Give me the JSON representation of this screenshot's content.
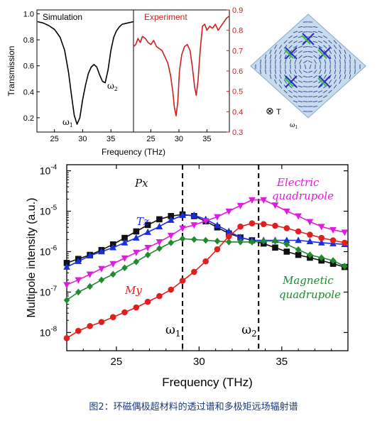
{
  "caption": "图2：环磁偶极超材料的透过谱和多极矩远场辐射谱",
  "inset": {
    "omega_label": "ω",
    "omega_sub": "1",
    "toroid_symbol": "⊗",
    "toroid_label": "T"
  },
  "chart_data": [
    {
      "type": "line",
      "panel_labels": [
        "Simulation",
        "Experiment"
      ],
      "xlabel": "Frequency (THz)",
      "ylabel_left": "Transmission",
      "xticks": [
        "25",
        "30",
        "35"
      ],
      "yticks_left": [
        "0.2",
        "0.4",
        "0.6",
        "0.8",
        "1.0"
      ],
      "yticks_right": [
        "0.3",
        "0.4",
        "0.5",
        "0.6",
        "0.7",
        "0.8",
        "0.9"
      ],
      "annotations": [
        {
          "base": "ω",
          "sub": "1"
        },
        {
          "base": "ω",
          "sub": "2"
        }
      ],
      "series": [
        {
          "color": "#000000",
          "x": [
            22,
            23,
            24,
            25,
            26,
            26.8,
            27.5,
            28,
            28.5,
            29,
            29.5,
            30,
            30.5,
            31,
            31.5,
            32,
            32.5,
            33,
            33.5,
            34,
            34.5,
            35,
            35.5,
            36,
            36.5,
            37,
            38,
            39
          ],
          "y": [
            0.94,
            0.93,
            0.91,
            0.88,
            0.82,
            0.72,
            0.55,
            0.38,
            0.22,
            0.15,
            0.2,
            0.34,
            0.45,
            0.54,
            0.59,
            0.61,
            0.59,
            0.53,
            0.48,
            0.47,
            0.57,
            0.72,
            0.82,
            0.87,
            0.9,
            0.92,
            0.93,
            0.94
          ]
        },
        {
          "color": "#cc1f1f",
          "x": [
            21.9,
            22.3,
            22.7,
            23.1,
            23.5,
            24,
            24.5,
            25,
            25.5,
            26,
            26.5,
            27,
            27.5,
            28,
            28.5,
            28.9,
            29.2,
            29.5,
            29.8,
            30.1,
            30.5,
            31,
            31.5,
            32,
            32.4,
            32.8,
            33.1,
            33.4,
            33.8,
            34.2,
            34.6,
            35,
            35.5,
            36,
            36.5,
            37,
            37.5,
            38,
            38.5,
            39
          ],
          "y": [
            0.72,
            0.73,
            0.76,
            0.74,
            0.77,
            0.76,
            0.74,
            0.73,
            0.75,
            0.72,
            0.71,
            0.7,
            0.67,
            0.64,
            0.58,
            0.5,
            0.42,
            0.38,
            0.45,
            0.6,
            0.68,
            0.72,
            0.73,
            0.7,
            0.62,
            0.52,
            0.48,
            0.55,
            0.7,
            0.82,
            0.83,
            0.8,
            0.82,
            0.81,
            0.83,
            0.8,
            0.82,
            0.84,
            0.86,
            0.87
          ]
        }
      ]
    },
    {
      "type": "line",
      "xlabel": "Frequency (THz)",
      "ylabel": "Multipole intensity (a.u.)",
      "xticks": [
        "25",
        "30",
        "35"
      ],
      "ytick_exponents": [
        "-8",
        "-7",
        "-6",
        "-5",
        "-4"
      ],
      "ytick_base": "10",
      "vlines": [
        {
          "x": 29,
          "label_base": "ω",
          "label_sub": "1"
        },
        {
          "x": 33.6,
          "label_base": "ω",
          "label_sub": "2"
        }
      ],
      "series": [
        {
          "name": "Px",
          "color": "#111111",
          "marker": "square",
          "x": [
            22,
            22.7,
            23.4,
            24.1,
            24.8,
            25.5,
            26.2,
            26.9,
            27.6,
            28.3,
            29,
            29.7,
            30.4,
            31.1,
            31.8,
            32.5,
            33.2,
            33.9,
            34.6,
            35.3,
            36,
            36.7,
            37.4,
            38.1,
            38.8
          ],
          "y": [
            -6.28,
            -6.18,
            -6.08,
            -5.96,
            -5.82,
            -5.66,
            -5.5,
            -5.34,
            -5.2,
            -5.12,
            -5.08,
            -5.12,
            -5.25,
            -5.4,
            -5.55,
            -5.65,
            -5.72,
            -5.8,
            -5.9,
            -6.0,
            -6.08,
            -6.15,
            -6.22,
            -6.3,
            -6.38
          ]
        },
        {
          "name": "Tz",
          "color": "#1a2ee0",
          "marker": "triangle-up",
          "x": [
            22,
            22.7,
            23.4,
            24.1,
            24.8,
            25.5,
            26.2,
            26.9,
            27.6,
            28.3,
            29,
            29.7,
            30.4,
            31.1,
            31.8,
            32.5,
            33.2,
            33.9,
            34.6,
            35.3,
            36,
            36.7,
            37.4,
            38.1,
            38.8
          ],
          "y": [
            -6.38,
            -6.24,
            -6.1,
            -6.0,
            -5.9,
            -5.78,
            -5.66,
            -5.52,
            -5.38,
            -5.22,
            -5.1,
            -5.1,
            -5.2,
            -5.35,
            -5.5,
            -5.65,
            -5.72,
            -5.72,
            -5.72,
            -5.72,
            -5.72,
            -5.75,
            -5.78,
            -5.8,
            -5.82
          ]
        },
        {
          "name": "Electric quadrupole",
          "color": "#e01be0",
          "marker": "triangle-down",
          "x": [
            22,
            22.7,
            23.4,
            24.1,
            24.8,
            25.5,
            26.2,
            26.9,
            27.6,
            28.3,
            29,
            29.7,
            30.4,
            31.1,
            31.8,
            32.5,
            33.2,
            33.9,
            34.6,
            35.3,
            36,
            36.7,
            37.4,
            38.1,
            38.8
          ],
          "y": [
            -6.82,
            -6.7,
            -6.56,
            -6.42,
            -6.3,
            -6.16,
            -6.02,
            -5.9,
            -5.76,
            -5.6,
            -5.42,
            -5.34,
            -5.24,
            -5.14,
            -5.0,
            -4.86,
            -4.72,
            -4.72,
            -4.85,
            -5.0,
            -5.12,
            -5.26,
            -5.38,
            -5.46,
            -5.52
          ]
        },
        {
          "name": "Magnetic quadrupole",
          "color": "#1f8a2e",
          "marker": "diamond",
          "x": [
            22,
            22.7,
            23.4,
            24.1,
            24.8,
            25.5,
            26.2,
            26.9,
            27.6,
            28.3,
            29,
            29.7,
            30.4,
            31.1,
            31.8,
            32.5,
            33.2,
            33.9,
            34.6,
            35.3,
            36,
            36.7,
            37.4,
            38.1,
            38.8
          ],
          "y": [
            -7.2,
            -7.0,
            -6.86,
            -6.7,
            -6.56,
            -6.4,
            -6.25,
            -6.08,
            -5.92,
            -5.78,
            -5.68,
            -5.7,
            -5.72,
            -5.74,
            -5.76,
            -5.76,
            -5.76,
            -5.74,
            -5.74,
            -5.82,
            -5.95,
            -6.08,
            -6.15,
            -6.22,
            -6.36
          ]
        },
        {
          "name": "My",
          "color": "#e01f1f",
          "marker": "circle",
          "x": [
            22,
            22.7,
            23.4,
            24.1,
            24.8,
            25.5,
            26.2,
            26.9,
            27.6,
            28.3,
            29,
            29.7,
            30.4,
            31.1,
            31.8,
            32.5,
            33.2,
            33.9,
            34.6,
            35.3,
            36,
            36.7,
            37.4,
            38.1,
            38.8
          ],
          "y": [
            -8.14,
            -7.96,
            -7.84,
            -7.74,
            -7.62,
            -7.5,
            -7.38,
            -7.24,
            -7.1,
            -6.94,
            -6.72,
            -6.5,
            -6.24,
            -5.94,
            -5.62,
            -5.38,
            -5.3,
            -5.32,
            -5.36,
            -5.42,
            -5.5,
            -5.58,
            -5.66,
            -5.72,
            -5.78
          ]
        }
      ],
      "series_labels": [
        {
          "text": "Px",
          "color": "#111111",
          "italic": true
        },
        {
          "text": "Tz",
          "color": "#1a2ee0",
          "italic": true
        },
        {
          "text": "My",
          "color": "#e01f1f",
          "italic": true
        },
        {
          "text": "Electric",
          "color": "#e01be0",
          "italic": true
        },
        {
          "text": "quadrupole",
          "color": "#e01be0",
          "italic": true
        },
        {
          "text": "Magnetic",
          "color": "#1f8a2e",
          "italic": true
        },
        {
          "text": "quadrupole",
          "color": "#1f8a2e",
          "italic": true
        }
      ]
    }
  ]
}
